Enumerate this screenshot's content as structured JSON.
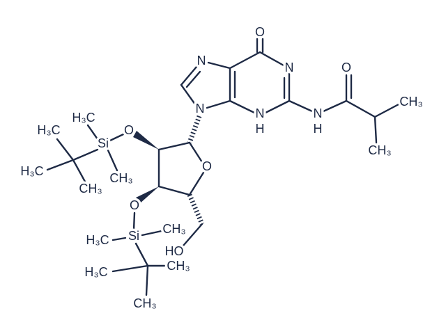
{
  "atoms": [
    {
      "label": "O"
    },
    {
      "label": "N"
    },
    {
      "label": "N"
    },
    {
      "label": "O"
    },
    {
      "label": "CH₃"
    },
    {
      "label": "N"
    },
    {
      "label": "N"
    },
    {
      "label": "H"
    },
    {
      "label": "N"
    },
    {
      "label": "H"
    },
    {
      "label": "H₃C"
    },
    {
      "label": "O"
    },
    {
      "label": "H₃C"
    },
    {
      "label": "Si"
    },
    {
      "label": "H₃C"
    },
    {
      "label": "CH₃"
    },
    {
      "label": "CH₃"
    },
    {
      "label": "CH₃"
    },
    {
      "label": "O"
    },
    {
      "label": "O"
    },
    {
      "label": "Si"
    },
    {
      "label": "H₃C"
    },
    {
      "label": "CH₃"
    },
    {
      "label": "HO"
    },
    {
      "label": "H₃C"
    },
    {
      "label": "CH₃"
    },
    {
      "label": "CH₃"
    }
  ]
}
